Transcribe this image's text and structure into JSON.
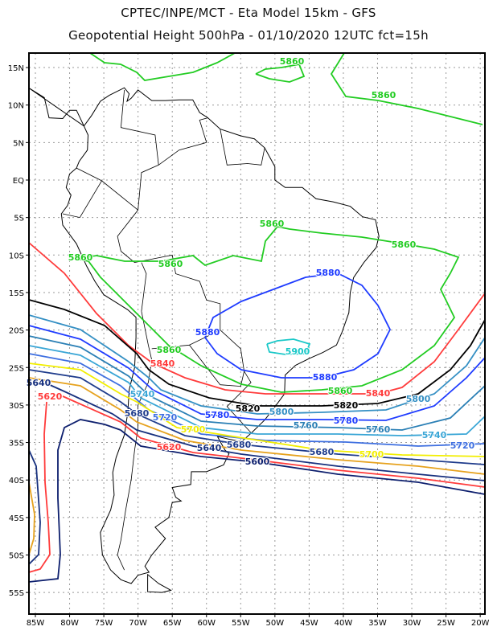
{
  "header": {
    "title_line1": "CPTEC/INPE/MCT -  Eta Model 15km - GFS",
    "title_line2": "Geopotential Height 500hPa - 01/10/2020 12UTC fct=15h"
  },
  "axes": {
    "lon_ticks": [
      "85W",
      "80W",
      "75W",
      "70W",
      "65W",
      "60W",
      "55W",
      "50W",
      "45W",
      "40W",
      "35W",
      "30W",
      "25W",
      "20W"
    ],
    "lat_ticks": [
      "15N",
      "10N",
      "5N",
      "EQ",
      "5S",
      "10S",
      "15S",
      "20S",
      "25S",
      "30S",
      "35S",
      "40S",
      "45S",
      "50S",
      "55S"
    ]
  },
  "contour_levels": {
    "5600": "#0d1f6e",
    "5620": "#ff3b3b",
    "5640": "#17307e",
    "5660": "#e6a21e",
    "5680": "#1f3c8c",
    "5700": "#f2ee00",
    "5720": "#3e6fe0",
    "5740": "#3aa6d6",
    "5760": "#2a7fb5",
    "5780": "#1f3cff",
    "5800": "#3590c4",
    "5820": "#000000",
    "5840": "#ff3b3b",
    "5860": "#22cc22",
    "5880": "#1f3cff",
    "5900": "#19c8c8"
  },
  "contour_labels": [
    "5860",
    "5860",
    "5860",
    "5860",
    "5860",
    "5860",
    "5860",
    "5860",
    "5880",
    "5880",
    "5880",
    "5900",
    "5840",
    "5840",
    "5820",
    "5820",
    "5800",
    "5800",
    "5780",
    "5780",
    "5760",
    "5760",
    "5740",
    "5740",
    "5720",
    "5720",
    "5700",
    "5700",
    "5680",
    "5680",
    "5680",
    "5640",
    "5640",
    "5620",
    "5620",
    "5600"
  ]
}
